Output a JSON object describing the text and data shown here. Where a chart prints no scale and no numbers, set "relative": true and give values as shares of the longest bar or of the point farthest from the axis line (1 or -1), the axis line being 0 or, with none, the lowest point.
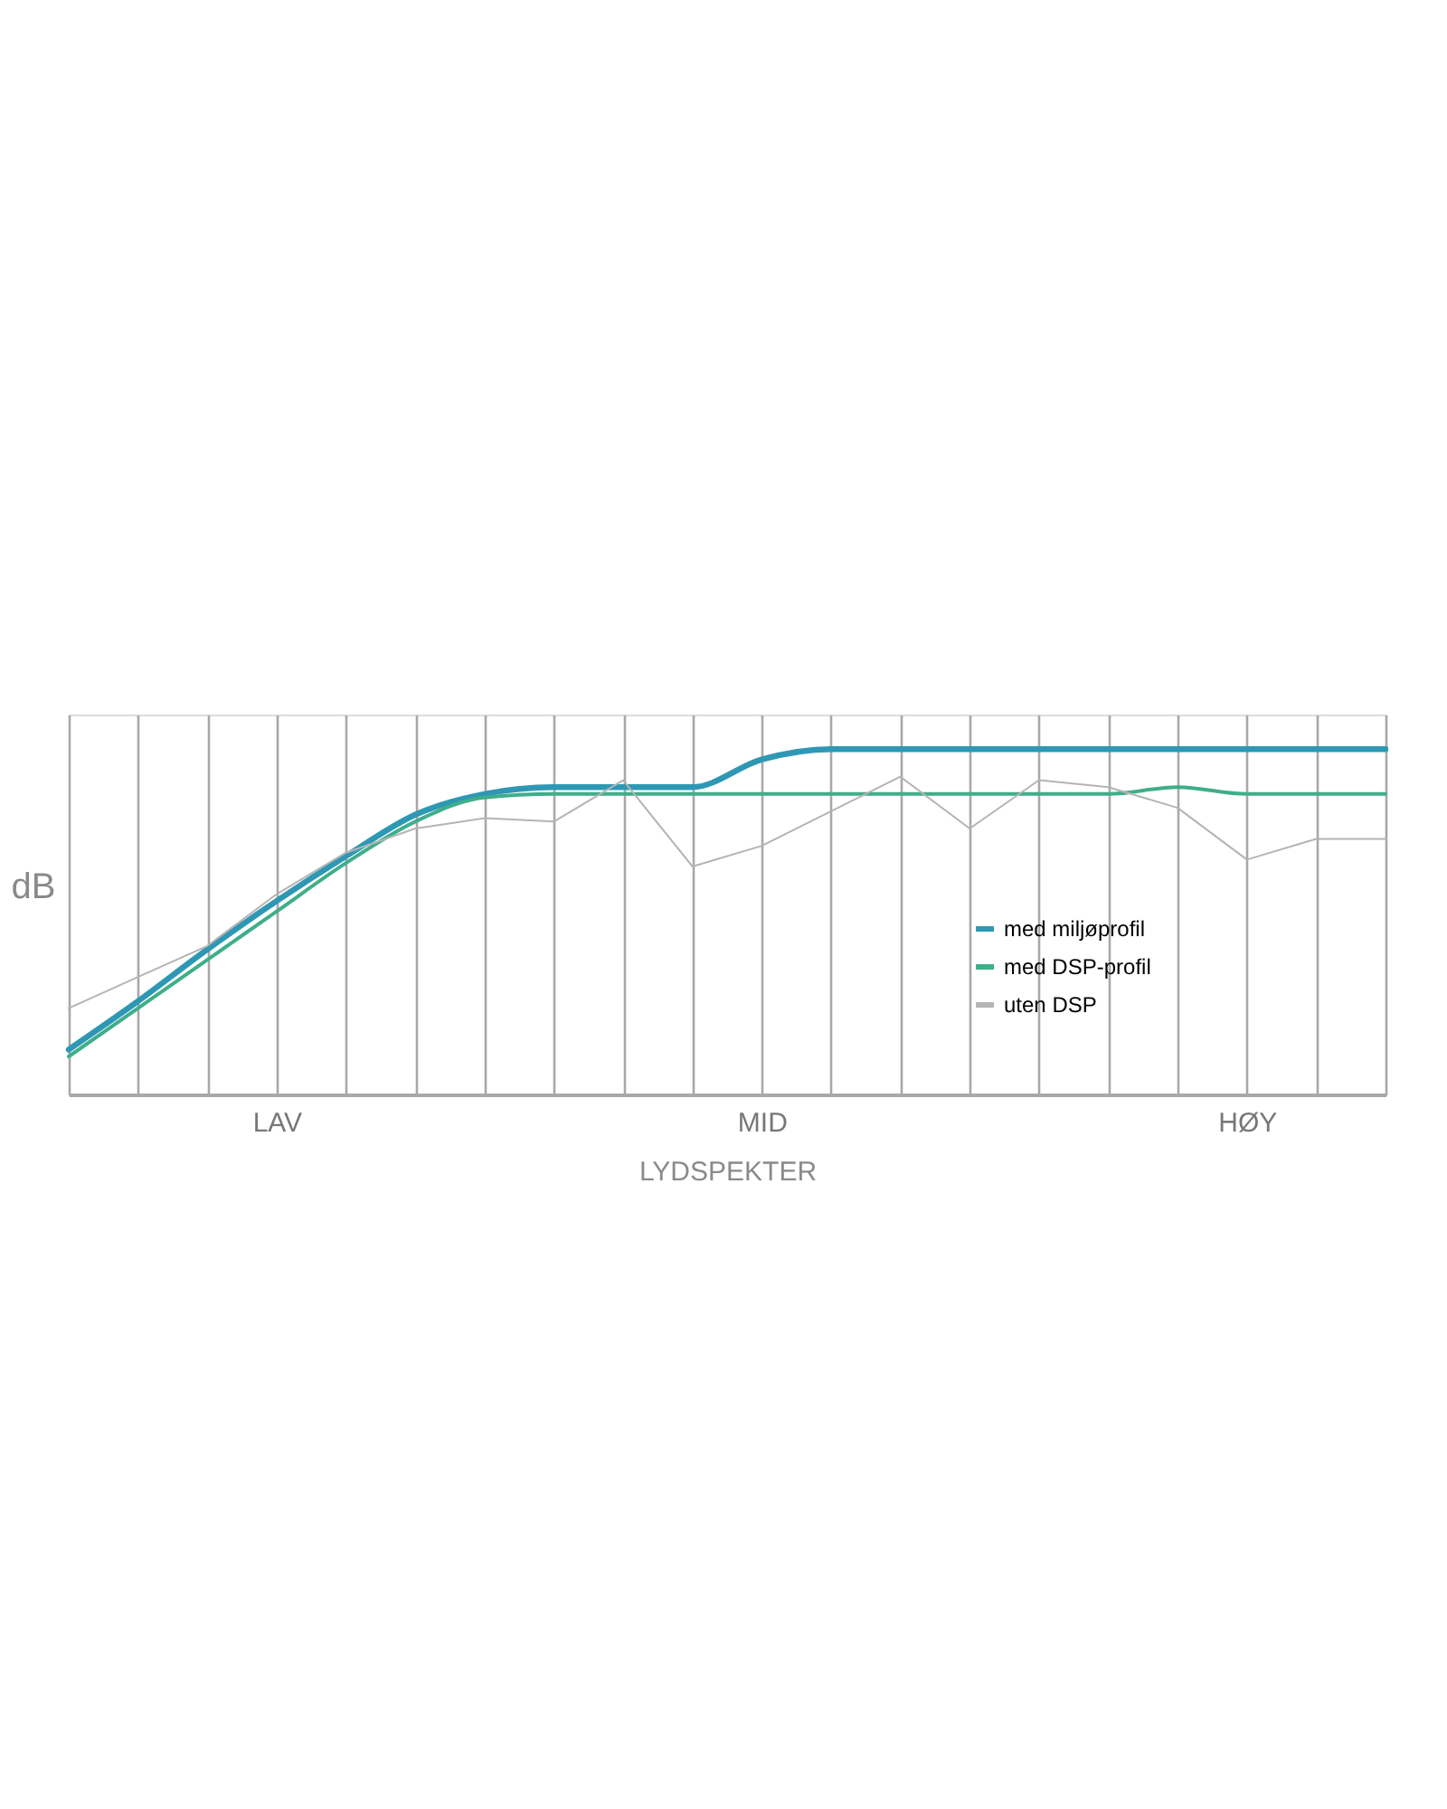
{
  "chart_data": {
    "type": "line",
    "relative": true,
    "xlabel": "LYDSPEKTER",
    "ylabel": "dB",
    "categories": [
      null,
      null,
      null,
      "LAV",
      null,
      null,
      null,
      null,
      null,
      null,
      "MID",
      null,
      null,
      null,
      null,
      null,
      null,
      "HØY",
      null,
      null
    ],
    "grid": "x",
    "legend": "bottom right",
    "marker": "none",
    "series": [
      {
        "name": "med miljøprofil",
        "color": "#2e98b4",
        "values": [
          0.13,
          0.27,
          0.42,
          0.56,
          0.69,
          0.81,
          0.87,
          0.89,
          0.89,
          0.89,
          0.97,
          1,
          1,
          1,
          1,
          1,
          1,
          1,
          1,
          1
        ]
      },
      {
        "name": "med DSP-profil",
        "color": "#3fae8a",
        "values": [
          0.11,
          0.25,
          0.39,
          0.53,
          0.67,
          0.79,
          0.86,
          0.87,
          0.87,
          0.87,
          0.87,
          0.87,
          0.87,
          0.87,
          0.87,
          0.87,
          0.89,
          0.87,
          0.87,
          0.87
        ]
      },
      {
        "name": "uten DSP",
        "color": "#b4b4b4",
        "values": [
          0.25,
          0.34,
          0.43,
          0.58,
          0.7,
          0.77,
          0.8,
          0.79,
          0.91,
          0.66,
          0.72,
          0.82,
          0.92,
          0.77,
          0.91,
          0.89,
          0.83,
          0.68,
          0.74,
          0.74
        ]
      }
    ]
  }
}
